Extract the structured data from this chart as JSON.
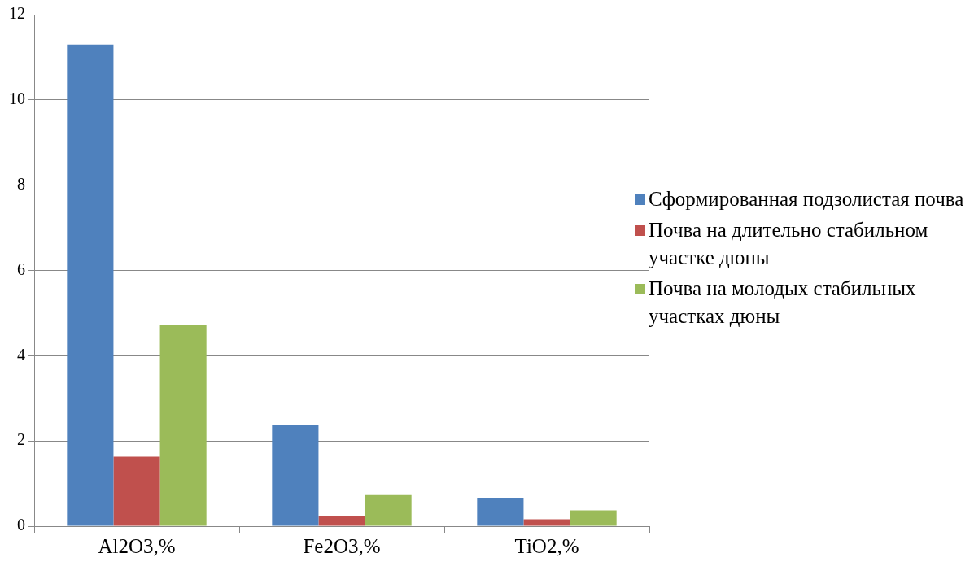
{
  "chart_data": {
    "type": "bar",
    "categories": [
      "Al2O3,%",
      "Fe2O3,%",
      "TiO2,%"
    ],
    "series": [
      {
        "name": "Сформированная подзолистая почва",
        "color": "#4f81bd",
        "values": [
          11.3,
          2.37,
          0.67
        ]
      },
      {
        "name": "Почва на длительно стабильном участке дюны",
        "color": "#c0504d",
        "values": [
          1.63,
          0.24,
          0.16
        ]
      },
      {
        "name": "Почва на молодых стабильных участках дюны",
        "color": "#9bbb59",
        "values": [
          4.71,
          0.73,
          0.37
        ]
      }
    ],
    "ylim": [
      0,
      12
    ],
    "yticks": [
      0,
      2,
      4,
      6,
      8,
      10,
      12
    ],
    "grid": "y",
    "legend": "right"
  }
}
